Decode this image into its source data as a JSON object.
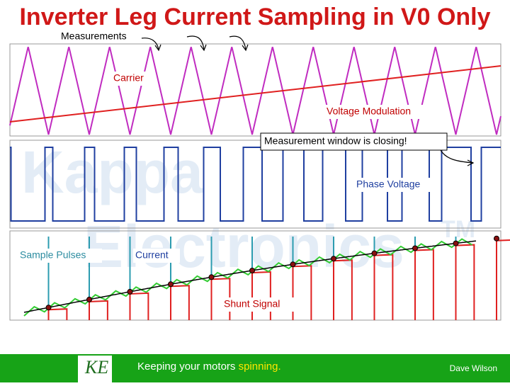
{
  "header": {
    "title": "Inverter Leg Current Sampling in V0 Only"
  },
  "labels": {
    "measurements": "Measurements",
    "carrier": "Carrier",
    "voltage_modulation": "Voltage Modulation",
    "window": "Measurement window is closing!",
    "phase_voltage": "Phase Voltage",
    "sample_pulses": "Sample Pulses",
    "current": "Current",
    "shunt_signal": "Shunt Signal"
  },
  "watermark": {
    "line1": "Kappa",
    "line2": "Electronics",
    "mark": "TM"
  },
  "footer": {
    "logo": "KE",
    "slogan_start": "Keeping your motors",
    "slogan_end": "spinning.",
    "author": "Dave Wilson"
  }
}
